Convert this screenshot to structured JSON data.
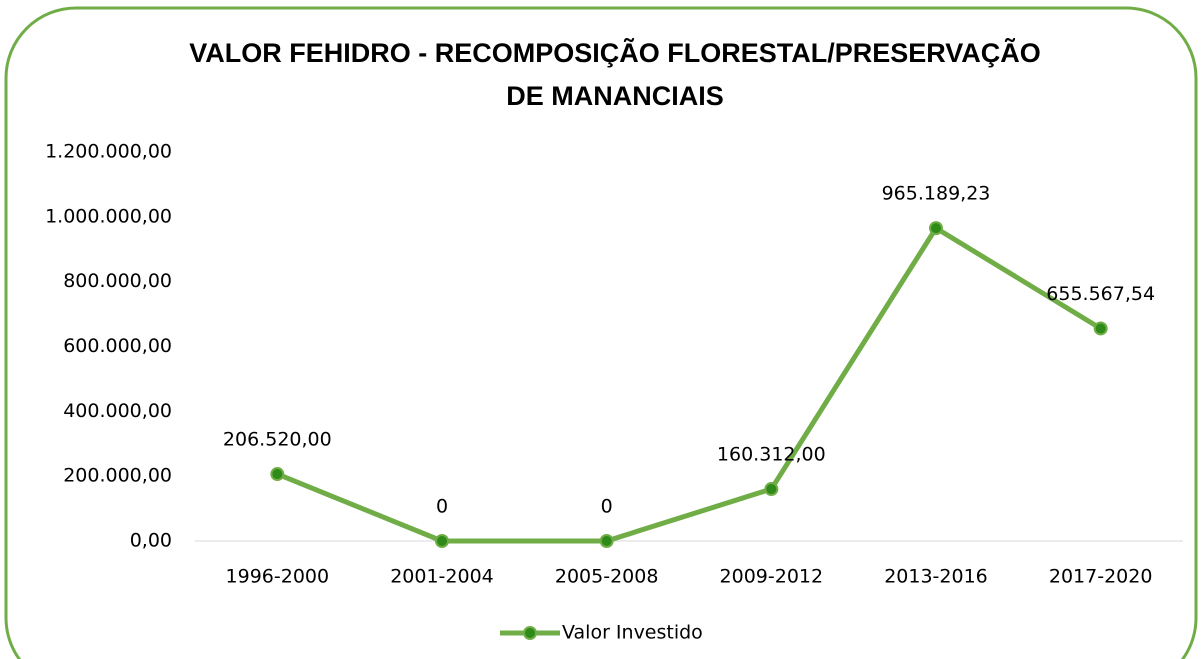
{
  "chart_data": {
    "type": "line",
    "title": [
      "VALOR FEHIDRO - RECOMPOSIÇÃO FLORESTAL/PRESERVAÇÃO",
      "DE MANANCIAIS"
    ],
    "categories": [
      "1996-2000",
      "2001-2004",
      "2005-2008",
      "2009-2012",
      "2013-2016",
      "2017-2020"
    ],
    "series": [
      {
        "name": "Valor Investido",
        "color": "#70ad47",
        "marker_color": "#2e8b1a",
        "values": [
          206520,
          0,
          0,
          160312,
          965189.23,
          655567.54
        ],
        "value_labels": [
          "206.520,00",
          "0",
          "0",
          "160.312,00",
          "965.189,23",
          "655.567,54"
        ]
      }
    ],
    "ylim": [
      0,
      1200000
    ],
    "yticks": [
      {
        "value": 0,
        "label": "0,00"
      },
      {
        "value": 200000,
        "label": "200.000,00"
      },
      {
        "value": 400000,
        "label": "400.000,00"
      },
      {
        "value": 600000,
        "label": "600.000,00"
      },
      {
        "value": 800000,
        "label": "800.000,00"
      },
      {
        "value": 1000000,
        "label": "1.000.000,00"
      },
      {
        "value": 1200000,
        "label": "1.200.000,00"
      }
    ],
    "grid": false,
    "legend": "bottom"
  }
}
